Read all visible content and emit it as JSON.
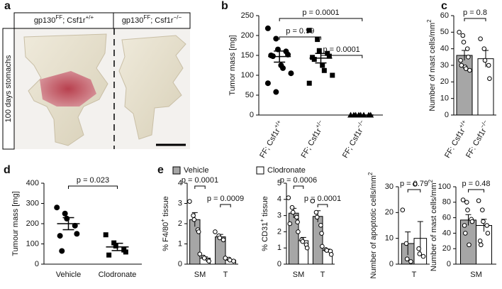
{
  "photo_panel": {
    "panel": "a",
    "headers": [
      [
        "gp130",
        "FF",
        "; Csf1r",
        "+/+"
      ],
      [
        "gp130",
        "FF",
        "; Csf1r",
        "−/−"
      ]
    ],
    "side_label": "100 days stomachs"
  },
  "chart_data": [
    {
      "type": "dot_plot",
      "panel": "b",
      "ylabel": [
        "Tumor mass [mg]"
      ],
      "rotate_labels": true,
      "categories": [
        [
          "FF; Csf1r",
          "+/+"
        ],
        [
          "FF; Csf1r",
          "+/−"
        ],
        [
          "FF; Csf1r",
          "−/−"
        ]
      ],
      "markers": [
        "circle",
        "square",
        "triangle"
      ],
      "color": "#000000",
      "points": [
        [
          218,
          192,
          165,
          160,
          152,
          150,
          148,
          125,
          118,
          105,
          80,
          58
        ],
        [
          213,
          190,
          162,
          155,
          148,
          145,
          140,
          125,
          112,
          100,
          80
        ],
        [
          0,
          0,
          0,
          0,
          0,
          0,
          0,
          0
        ]
      ],
      "means": [
        147,
        143,
        0
      ],
      "errors": [
        14,
        12,
        0
      ],
      "ylim": [
        0,
        250
      ],
      "yticks": [
        0,
        50,
        100,
        150,
        200,
        250
      ],
      "comparisons": [
        {
          "pair": [
            1,
            2
          ],
          "label": "p = 0.0001"
        },
        {
          "pair": [
            0,
            1
          ],
          "label": "p = 0.99"
        },
        {
          "pair": [
            0,
            2
          ],
          "label": "p = 0.0001"
        }
      ]
    },
    {
      "type": "bar",
      "panel": "c",
      "ylabel": [
        "Number of mast cells/mm",
        "2"
      ],
      "rotate_labels": true,
      "categories": [
        [
          "FF: Csf1r",
          "+/+"
        ],
        [
          "FF: Csf1r",
          "−/−"
        ]
      ],
      "series": [
        {
          "colors": [
            "#a6a6a6",
            "#ffffff"
          ],
          "values": [
            36,
            34
          ],
          "errors": [
            3,
            5
          ],
          "points": [
            [
              50,
              48,
              44,
              40,
              35,
              33,
              30,
              29,
              28,
              27
            ],
            [
              46,
              40,
              33,
              30,
              22
            ]
          ]
        }
      ],
      "ylim": [
        0,
        60
      ],
      "yticks": [
        0,
        10,
        20,
        30,
        40,
        50,
        60
      ],
      "comparisons": [
        {
          "pair": [
            0,
            1
          ],
          "label": "p = 0.8"
        }
      ]
    },
    {
      "type": "dot_plot",
      "panel": "d",
      "ylabel": [
        "Tumour mass [mg]"
      ],
      "categories": [
        "Vehicle",
        "Clodronate"
      ],
      "markers": [
        "circle",
        "square"
      ],
      "color": "#000000",
      "points": [
        [
          280,
          250,
          225,
          190,
          150,
          140,
          65
        ],
        [
          145,
          105,
          90,
          70,
          60,
          45
        ]
      ],
      "means": [
        200,
        85
      ],
      "errors": [
        30,
        18
      ],
      "ylim": [
        0,
        400
      ],
      "yticks": [
        0,
        100,
        200,
        300,
        400
      ],
      "comparisons": [
        {
          "pair": [
            0,
            1
          ],
          "label": "p = 0.023"
        }
      ]
    },
    {
      "type": "bar",
      "panel": "e",
      "ylabel": [
        "% F4/80",
        "+",
        " tissue"
      ],
      "legend": true,
      "categories": [
        "SM",
        "T"
      ],
      "series": [
        {
          "name": "Vehicle",
          "color": "#a6a6a6",
          "values": [
            2.2,
            1.35
          ],
          "errors": [
            0.35,
            0.12
          ],
          "points": [
            [
              3.1,
              2.4,
              2.2,
              1.7,
              1.6
            ],
            [
              1.6,
              1.4,
              1.3,
              1.2
            ]
          ]
        },
        {
          "name": "Clodronate",
          "color": "#ffffff",
          "values": [
            0.3,
            0.2
          ],
          "errors": [
            0.06,
            0.03
          ],
          "points": [
            [
              0.5,
              0.35,
              0.3,
              0.2,
              0.15
            ],
            [
              0.3,
              0.25,
              0.2,
              0.15
            ]
          ]
        }
      ],
      "ylim": [
        0,
        4
      ],
      "yticks": [
        0,
        1,
        2,
        3,
        4
      ],
      "comparisons": [
        {
          "pair": [
            2,
            3
          ],
          "label": "p = 0.0009"
        },
        {
          "pair": [
            0,
            1
          ],
          "label": "p = 0.0001"
        }
      ]
    },
    {
      "type": "bar",
      "ylabel": [
        "% CD31",
        "+",
        " tissue"
      ],
      "categories": [
        "SM",
        "T"
      ],
      "series": [
        {
          "color": "#a6a6a6",
          "values": [
            3.15,
            2.95
          ],
          "errors": [
            0.3,
            0.35
          ],
          "points": [
            [
              4.1,
              3.5,
              3.2,
              2.9,
              2.6,
              2.5
            ],
            [
              3.9,
              3.2,
              2.9,
              2.4,
              1.9
            ]
          ]
        },
        {
          "color": "#ffffff",
          "values": [
            1.45,
            0.85
          ],
          "errors": [
            0.2,
            0.08
          ],
          "points": [
            [
              2.0,
              1.5,
              1.4,
              1.2,
              1.0
            ],
            [
              1.1,
              0.9,
              0.85,
              0.8,
              0.6
            ]
          ]
        }
      ],
      "ylim": [
        0,
        5
      ],
      "yticks": [
        0,
        1,
        2,
        3,
        4,
        5
      ],
      "comparisons": [
        {
          "pair": [
            2,
            3
          ],
          "label": "p = 0.0001"
        },
        {
          "pair": [
            0,
            1
          ],
          "label": "p = 0.0006"
        }
      ]
    },
    {
      "type": "bar",
      "ylabel": [
        "Number of apoptotic cells/mm",
        "2"
      ],
      "categories": [
        "T"
      ],
      "series": [
        {
          "color": "#a6a6a6",
          "values": [
            8
          ],
          "errors": [
            4.5
          ],
          "points": [
            [
              21,
              8,
              2,
              1
            ]
          ]
        },
        {
          "color": "#ffffff",
          "values": [
            10
          ],
          "errors": [
            6.5
          ],
          "points": [
            [
              31,
              6,
              4,
              3
            ]
          ]
        }
      ],
      "ylim": [
        0,
        30
      ],
      "yticks": [
        0,
        10,
        20,
        30
      ],
      "comparisons": [
        {
          "pair": [
            0,
            1
          ],
          "label": "p = 0.79"
        }
      ]
    },
    {
      "type": "bar",
      "ylabel": [
        "Number of mast cells/mm",
        "2"
      ],
      "categories": [
        "SM"
      ],
      "series": [
        {
          "color": "#a6a6a6",
          "values": [
            57
          ],
          "errors": [
            7
          ],
          "points": [
            [
              83,
              80,
              70,
              58,
              55,
              50,
              40,
              25
            ]
          ]
        },
        {
          "color": "#ffffff",
          "values": [
            50
          ],
          "errors": [
            8
          ],
          "points": [
            [
              82,
              70,
              55,
              50,
              40,
              30,
              25
            ]
          ]
        }
      ],
      "ylim": [
        0,
        100
      ],
      "yticks": [
        0,
        20,
        40,
        60,
        80,
        100
      ],
      "comparisons": [
        {
          "pair": [
            0,
            1
          ],
          "label": "p = 0.48"
        }
      ]
    }
  ]
}
